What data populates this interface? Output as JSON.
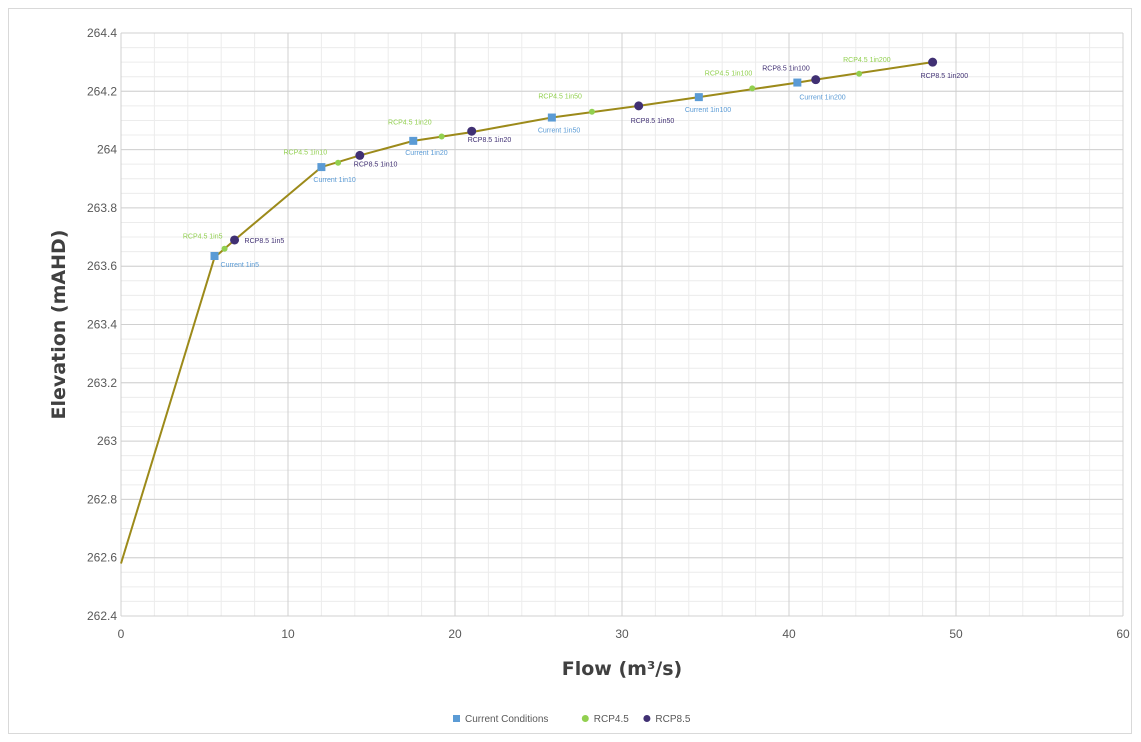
{
  "chart_data": {
    "type": "scatter",
    "title": "",
    "xlabel": "Flow (m³/s)",
    "ylabel": "Elevation (mAHD)",
    "xlim": [
      0,
      60
    ],
    "ylim": [
      262.4,
      264.4
    ],
    "x_ticks": [
      "0",
      "10",
      "20",
      "30",
      "40",
      "50",
      "60"
    ],
    "y_ticks": [
      "262.4",
      "262.6",
      "262.8",
      "263",
      "263.2",
      "263.4",
      "263.6",
      "263.8",
      "264",
      "264.2",
      "264.4"
    ],
    "grid": true,
    "minor_grid": true,
    "legend_position": "bottom",
    "rating_curve": {
      "color": "#9c8a1a",
      "points": [
        [
          0,
          262.58
        ],
        [
          5.6,
          263.63
        ],
        [
          6.8,
          263.69
        ],
        [
          12.0,
          263.94
        ],
        [
          14.3,
          263.98
        ],
        [
          17.5,
          264.03
        ],
        [
          21.0,
          264.06
        ],
        [
          25.8,
          264.11
        ],
        [
          31.0,
          264.15
        ],
        [
          34.6,
          264.18
        ],
        [
          40.5,
          264.23
        ],
        [
          41.6,
          264.24
        ],
        [
          48.6,
          264.3
        ]
      ]
    },
    "series": [
      {
        "name": "Current Conditions",
        "color": "#5b9bd5",
        "marker": "square",
        "points": [
          {
            "x": 5.6,
            "y": 263.635,
            "label": "Current 1in5"
          },
          {
            "x": 12.0,
            "y": 263.94,
            "label": "Current 1in10"
          },
          {
            "x": 17.5,
            "y": 264.03,
            "label": "Current 1in20"
          },
          {
            "x": 25.8,
            "y": 264.11,
            "label": "Current 1in50"
          },
          {
            "x": 34.6,
            "y": 264.18,
            "label": "Current 1in100"
          },
          {
            "x": 40.5,
            "y": 264.23,
            "label": "Current 1in200"
          }
        ]
      },
      {
        "name": "RCP4.5",
        "color": "#92d050",
        "marker": "circle",
        "points": [
          {
            "x": 6.2,
            "y": 263.66,
            "label": "RCP4.5 1in5"
          },
          {
            "x": 13.0,
            "y": 263.955,
            "label": "RCP4.5 1in10"
          },
          {
            "x": 19.2,
            "y": 264.045,
            "label": "RCP4.5 1in20"
          },
          {
            "x": 28.2,
            "y": 264.13,
            "label": "RCP4.5 1in50"
          },
          {
            "x": 37.8,
            "y": 264.21,
            "label": "RCP4.5 1in100"
          },
          {
            "x": 44.2,
            "y": 264.26,
            "label": "RCP4.5 1in200"
          }
        ]
      },
      {
        "name": "RCP8.5",
        "color": "#403073",
        "marker": "circle",
        "points": [
          {
            "x": 6.8,
            "y": 263.69,
            "label": "RCP8.5 1in5"
          },
          {
            "x": 14.3,
            "y": 263.98,
            "label": "RCP8.5 1in10"
          },
          {
            "x": 21.0,
            "y": 264.063,
            "label": "RCP8.5 1in20"
          },
          {
            "x": 31.0,
            "y": 264.15,
            "label": "RCP8.5 1in50"
          },
          {
            "x": 41.6,
            "y": 264.24,
            "label": "RCP8.5 1in100"
          },
          {
            "x": 48.6,
            "y": 264.3,
            "label": "RCP8.5 1in200"
          }
        ]
      }
    ]
  }
}
